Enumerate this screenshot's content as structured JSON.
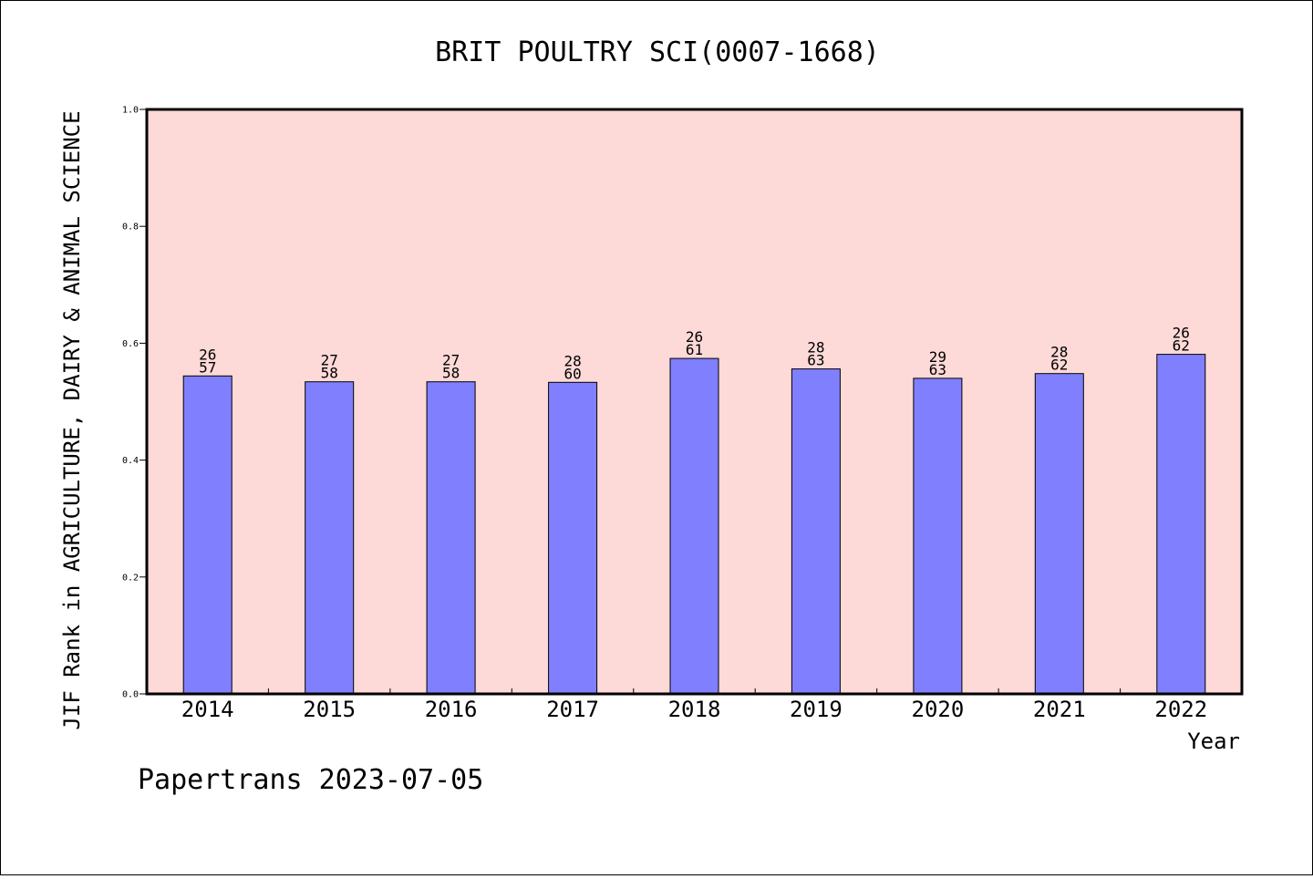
{
  "chart_data": {
    "type": "bar",
    "title": "BRIT POULTRY SCI(0007-1668)",
    "xlabel": "Year",
    "ylabel": "JIF Rank in AGRICULTURE, DAIRY & ANIMAL SCIENCE",
    "ylim": [
      0,
      1.0
    ],
    "yticks": [
      "0.0",
      "0.2",
      "0.4",
      "0.6",
      "0.8",
      "1.0"
    ],
    "grid": false,
    "colors": {
      "plot_bg": "#fdd9d7",
      "bar": "#8080ff",
      "axis": "#000000"
    },
    "categories": [
      "2014",
      "2015",
      "2016",
      "2017",
      "2018",
      "2019",
      "2020",
      "2021",
      "2022"
    ],
    "values": [
      0.544,
      0.534,
      0.534,
      0.533,
      0.574,
      0.556,
      0.54,
      0.548,
      0.581
    ],
    "rank_labels": [
      {
        "rank": "26",
        "total": "57"
      },
      {
        "rank": "27",
        "total": "58"
      },
      {
        "rank": "27",
        "total": "58"
      },
      {
        "rank": "28",
        "total": "60"
      },
      {
        "rank": "26",
        "total": "61"
      },
      {
        "rank": "28",
        "total": "63"
      },
      {
        "rank": "29",
        "total": "63"
      },
      {
        "rank": "28",
        "total": "62"
      },
      {
        "rank": "26",
        "total": "62"
      }
    ]
  },
  "footer": "Papertrans 2023-07-05"
}
